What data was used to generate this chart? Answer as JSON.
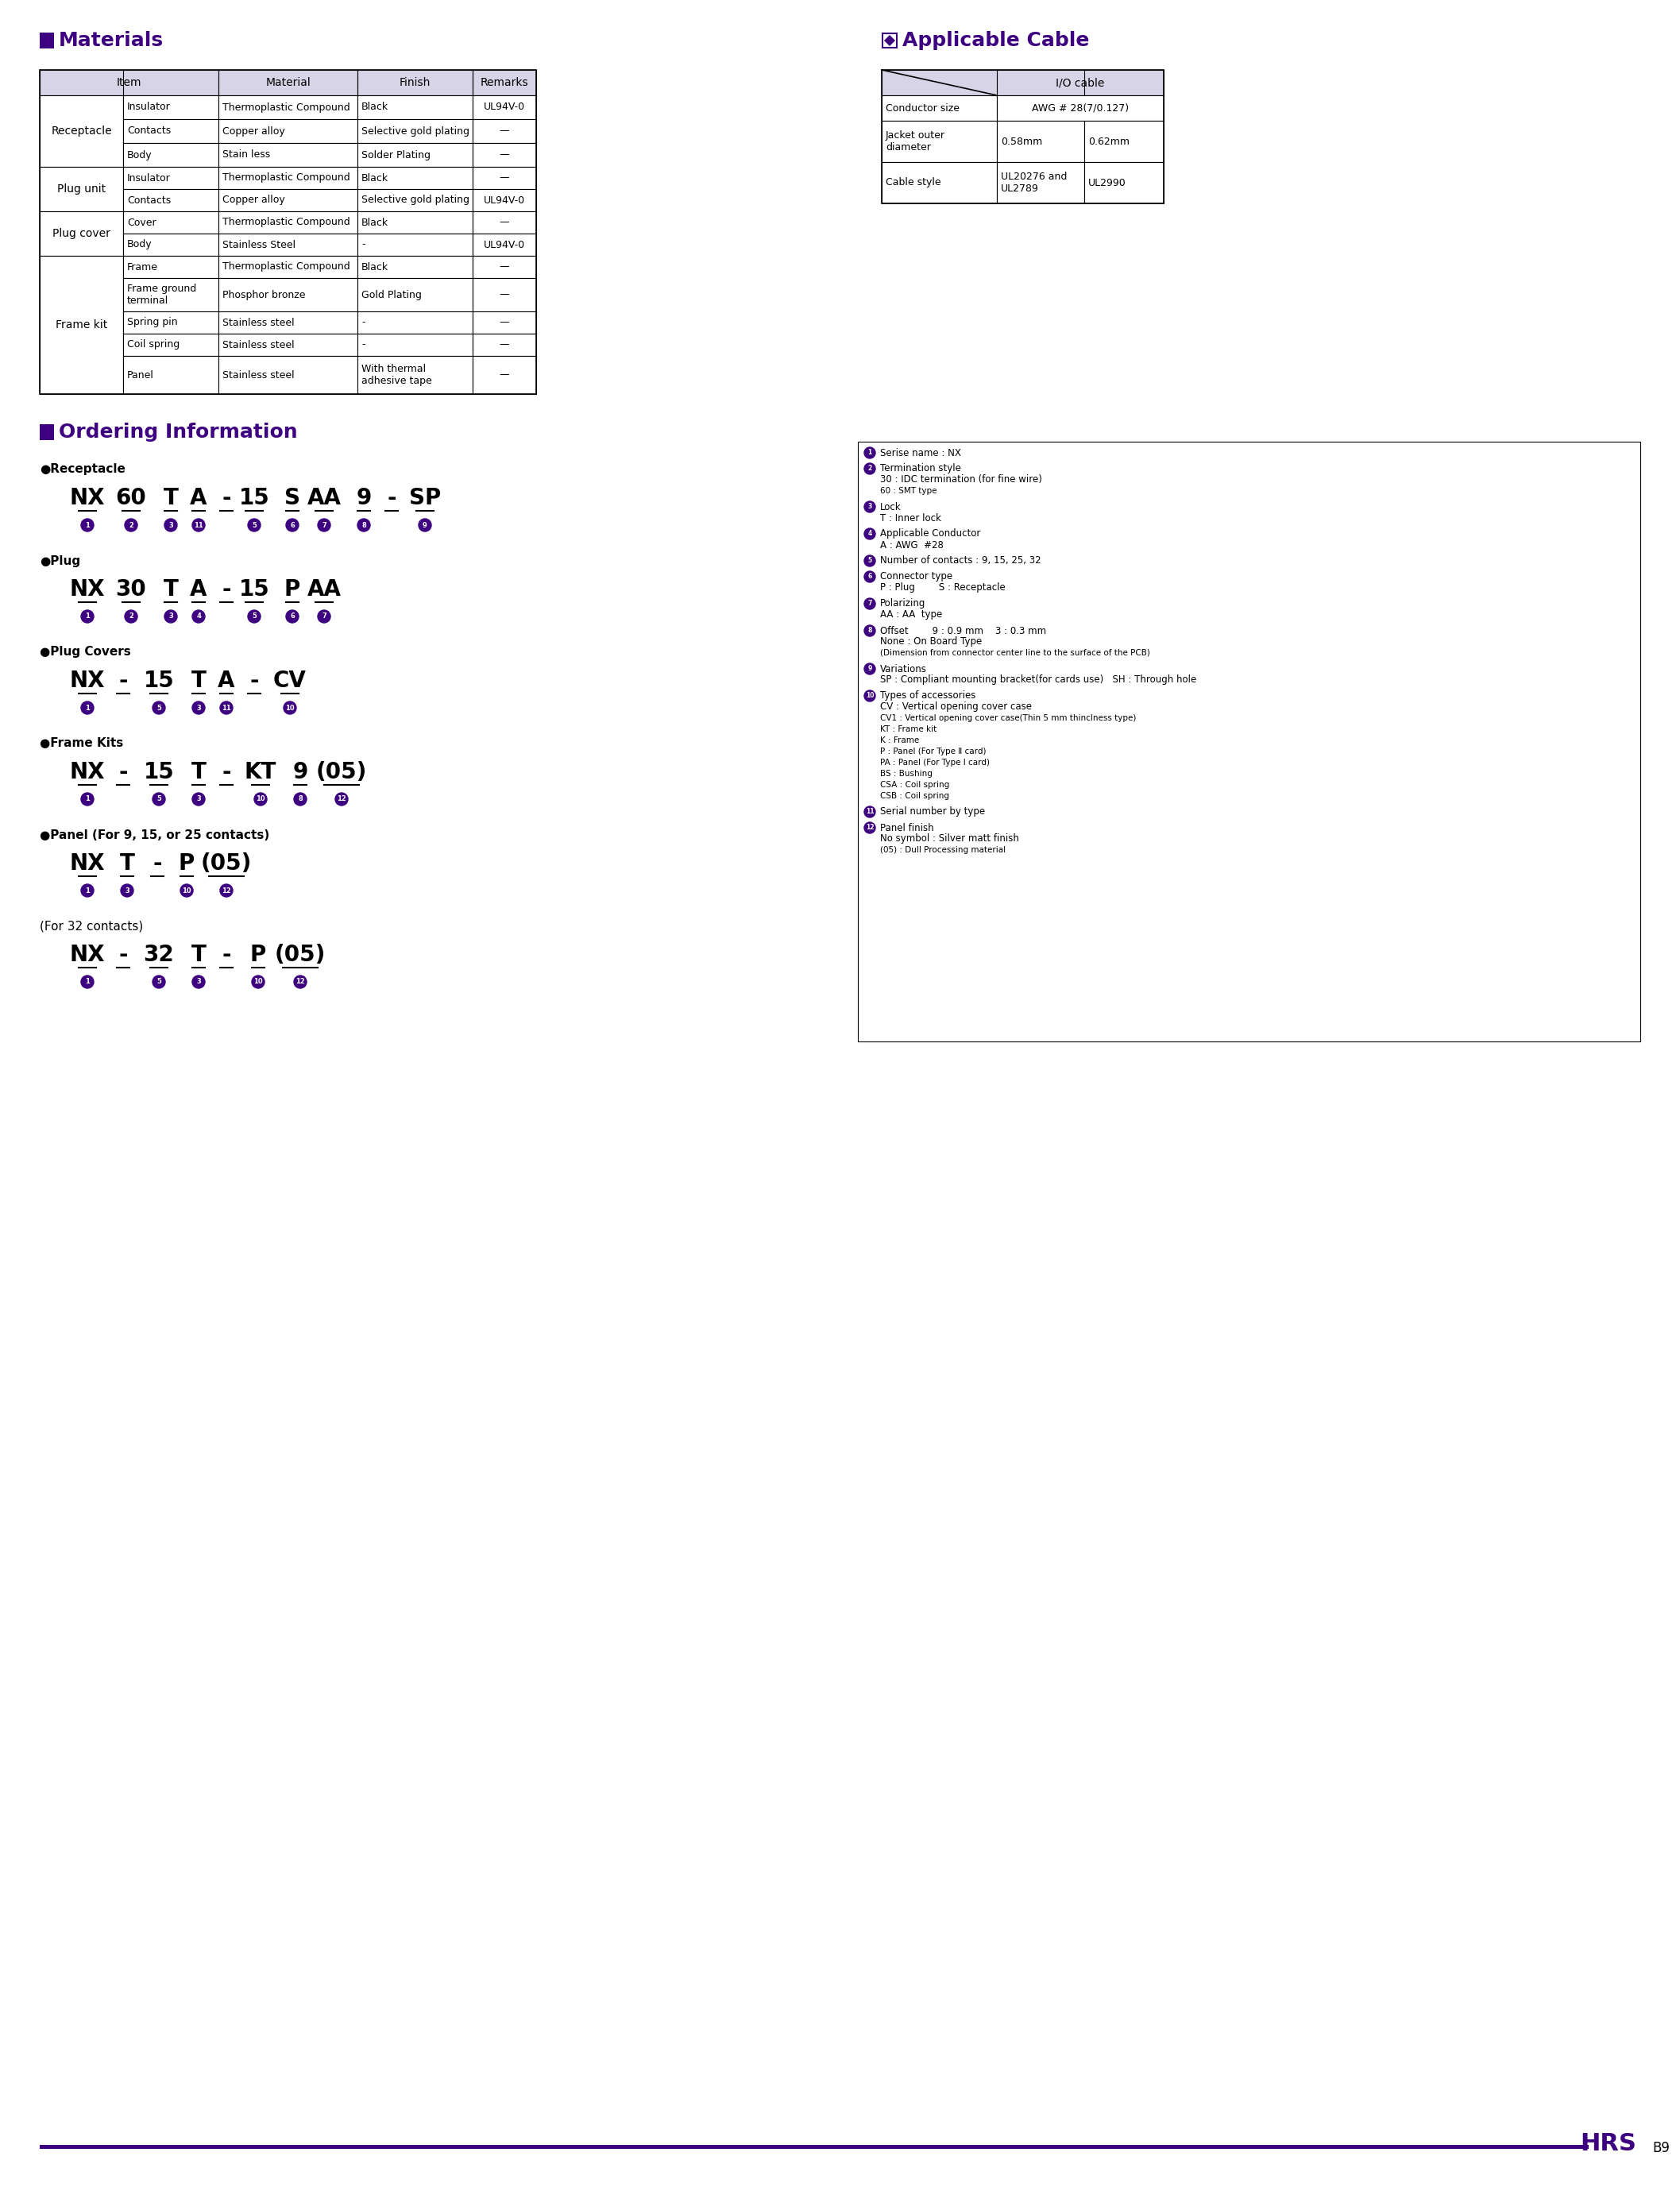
{
  "purple": "#3d0080",
  "purple_dark": "#2d006b",
  "header_bg": "#d8d4e8",
  "white": "#ffffff",
  "black": "#000000",
  "page_bg": "#ffffff",
  "footer_line_color": "#3d0080",
  "materials_title": "Materials",
  "applicable_cable_title": "Applicable Cable",
  "ordering_title": "Ordering Information",
  "mat_headers": [
    "Item",
    "Material",
    "Finish",
    "Remarks"
  ],
  "mat_rows": [
    [
      "Receptacle",
      "Insulator",
      "Thermoplastic Compound",
      "Black",
      "UL94V-0"
    ],
    [
      "Receptacle",
      "Contacts",
      "Copper alloy",
      "Selective gold plating",
      "—"
    ],
    [
      "Receptacle",
      "Body",
      "Stain less",
      "Solder Plating",
      "—"
    ],
    [
      "Plug unit",
      "Insulator",
      "Thermoplastic Compound",
      "Black",
      "—"
    ],
    [
      "Plug unit",
      "Contacts",
      "Copper alloy",
      "Selective gold plating",
      "UL94V-0"
    ],
    [
      "Plug cover",
      "Cover",
      "Thermoplastic Compound",
      "Black",
      "—"
    ],
    [
      "Plug cover",
      "Body",
      "Stainless Steel",
      "-",
      "UL94V-0"
    ],
    [
      "Frame kit",
      "Frame",
      "Thermoplastic Compound",
      "Black",
      "—"
    ],
    [
      "Frame kit",
      "Frame ground\nterminal",
      "Phosphor bronze",
      "Gold Plating",
      "—"
    ],
    [
      "Frame kit",
      "Spring pin",
      "Stainless steel",
      "-",
      "—"
    ],
    [
      "Frame kit",
      "Coil spring",
      "Stainless steel",
      "-",
      "—"
    ],
    [
      "Frame kit",
      "Panel",
      "Stainless steel",
      "With thermal\nadhesive tape",
      "—"
    ]
  ],
  "cable_rows": [
    [
      "Conductor size",
      "AWG # 28(7/0.127)",
      ""
    ],
    [
      "Jacket outer\ndiameter",
      "0.58mm",
      "0.62mm"
    ],
    [
      "Cable style",
      "UL20276 and\nUL2789",
      "UL2990"
    ]
  ],
  "ordering_notes": [
    [
      "1",
      "Serise name : NX"
    ],
    [
      "2",
      "Termination style\n30 : IDC termination (for fine wire)\n60 : SMT type"
    ],
    [
      "3",
      "Lock\nT : Inner lock"
    ],
    [
      "4",
      "Applicable Conductor\nA : AWG  #28"
    ],
    [
      "5",
      "Number of contacts : 9, 15, 25, 32"
    ],
    [
      "6",
      "Connector type\nP : Plug        S : Receptacle"
    ],
    [
      "7",
      "Polarizing\nAA : AA  type"
    ],
    [
      "8",
      "Offset        9 : 0.9 mm    3 : 0.3 mm\nNone : On Board Type\n(Dimension from connector center line to the surface of the PCB)"
    ],
    [
      "9",
      "Variations\nSP : Compliant mounting bracket(for cards use)   SH : Through hole"
    ],
    [
      "10",
      "Types of accessories\nCV : Vertical opening cover case\nCV1 : Vertical opening cover case(Thin 5 mm thinclness type)\nKT : Frame kit\nK : Frame\nP : Panel (For Type Ⅱ card)\nPA : Panel (For Type Ⅰ card)\nBS : Bushing\nCSA : Coil spring\nCSB : Coil spring"
    ],
    [
      "11",
      "Serial number by type"
    ],
    [
      "12",
      "Panel finish\nNo symbol : Silver matt finish\n(05) : Dull Processing material"
    ]
  ]
}
